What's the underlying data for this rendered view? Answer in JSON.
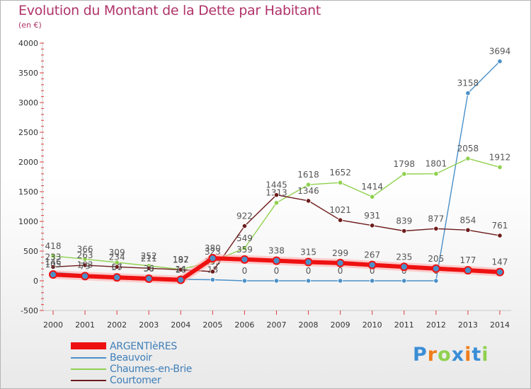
{
  "chart_data": {
    "type": "line",
    "title": "Evolution du Montant de la Dette par Habitant",
    "subtitle": "(en €)",
    "xlabel": "",
    "ylabel": "",
    "ylim": [
      -500,
      4000
    ],
    "y_ticks": [
      "-500",
      "0",
      "500",
      "1000",
      "1500",
      "2000",
      "2500",
      "3000",
      "3500",
      "4000"
    ],
    "y_tick_values": [
      -500,
      0,
      500,
      1000,
      1500,
      2000,
      2500,
      3000,
      3500,
      4000
    ],
    "x": [
      "2000",
      "2001",
      "2002",
      "2003",
      "2004",
      "2005",
      "2006",
      "2007",
      "2008",
      "2009",
      "2010",
      "2011",
      "2012",
      "2013",
      "2014"
    ],
    "series": [
      {
        "name": "Beauvoir",
        "color": "#4a90c8",
        "values": [
          146,
          103,
          66,
          39,
          24,
          18,
          0,
          0,
          0,
          0,
          0,
          0,
          0,
          3158,
          3694
        ],
        "labels": [
          "146",
          "103",
          "66",
          "39",
          "24",
          "18",
          "0",
          "0",
          "0",
          "0",
          "0",
          "0",
          "0",
          "3158",
          "3694"
        ]
      },
      {
        "name": "Chaumes-en-Brie",
        "color": "#8fd14f",
        "values": [
          418,
          366,
          309,
          252,
          192,
          323,
          549,
          1313,
          1618,
          1652,
          1414,
          1798,
          1801,
          2058,
          1912
        ],
        "labels": [
          "418",
          "366",
          "309",
          "252",
          "192",
          "323",
          "549",
          "1313",
          "1618",
          "1652",
          "1414",
          "1798",
          "1801",
          "2058",
          "1912"
        ]
      },
      {
        "name": "Courtomer",
        "color": "#6d1b1b",
        "values": [
          233,
          263,
          234,
          211,
          187,
          155,
          922,
          1445,
          1346,
          1021,
          931,
          839,
          877,
          854,
          761
        ],
        "labels": [
          "233",
          "263",
          "234",
          "211",
          "187",
          "155",
          "922",
          "1445",
          "1346",
          "1021",
          "931",
          "839",
          "877",
          "854",
          "761"
        ]
      },
      {
        "name": "ARGENTIèRES",
        "color": "#ee1111",
        "values": [
          105,
          79,
          57,
          36,
          16,
          380,
          359,
          338,
          315,
          299,
          267,
          235,
          205,
          177,
          147
        ],
        "labels": [
          "105",
          "79",
          "57",
          "36",
          "16",
          "380",
          "359",
          "338",
          "315",
          "299",
          "267",
          "235",
          "205",
          "177",
          "147"
        ]
      }
    ],
    "legend": [
      "ARGENTIèRES",
      "Beauvoir",
      "Chaumes-en-Brie",
      "Courtomer"
    ],
    "legend_position": "bottom-left",
    "grid": false
  },
  "branding": {
    "logo_text": "Proxiti",
    "logo_colors": [
      "#3b8ed6",
      "#f07d1a",
      "#8fd14f",
      "#3b8ed6",
      "#f07d1a",
      "#3b8ed6",
      "#8fd14f"
    ]
  }
}
